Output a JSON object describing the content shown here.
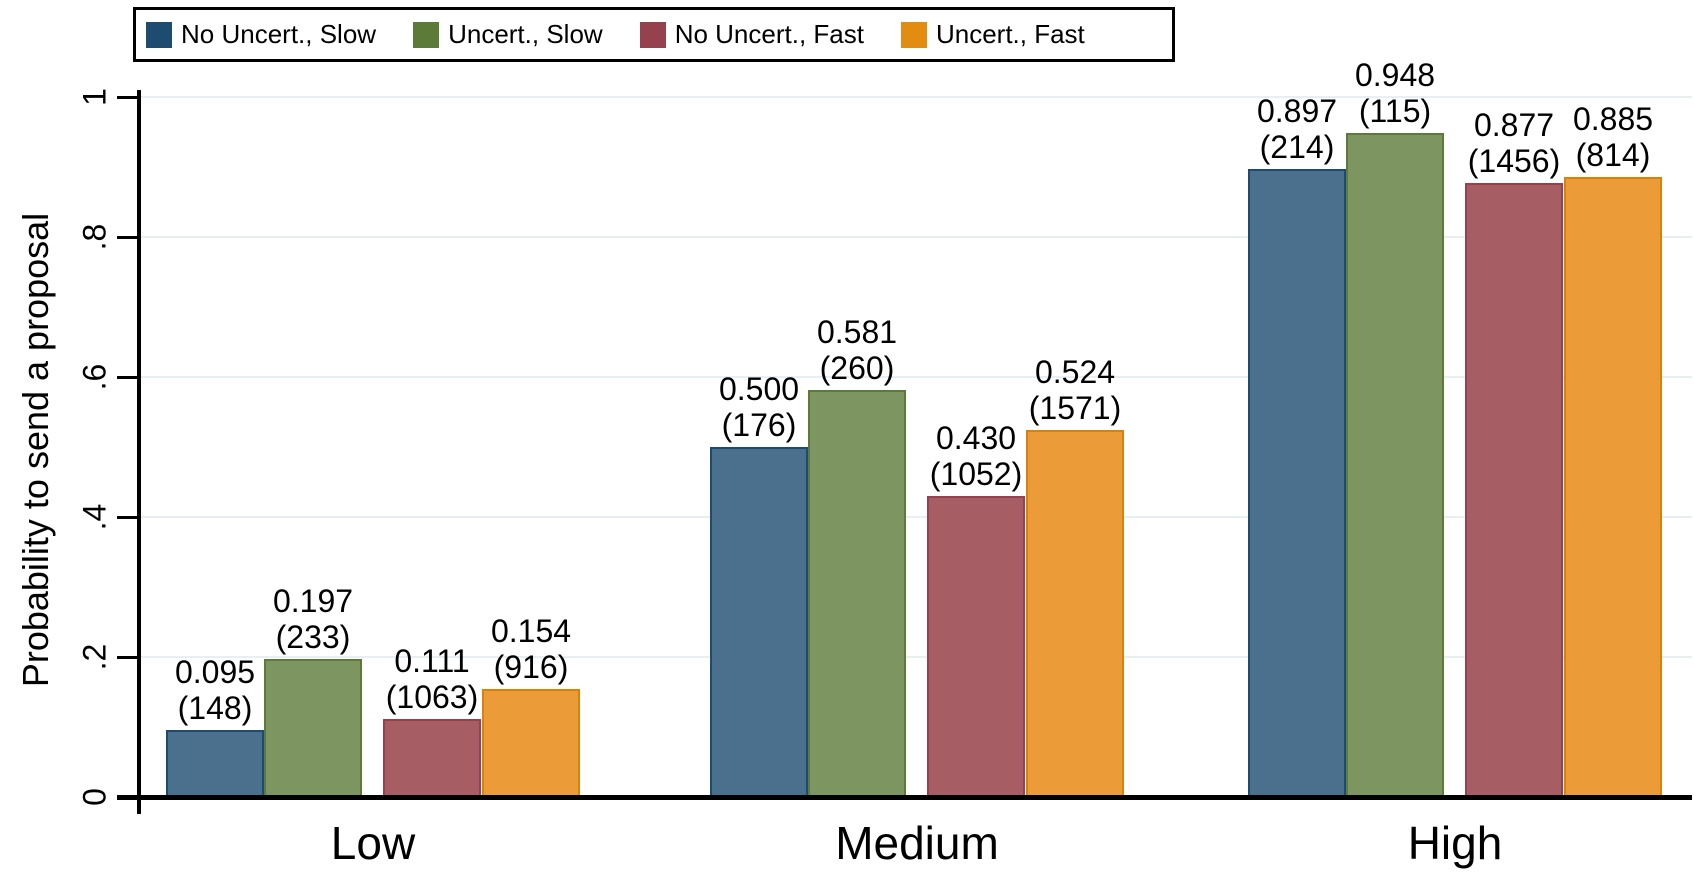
{
  "chart_data": {
    "type": "bar",
    "title": "",
    "ylabel": "Probability to send a proposal",
    "xlabel": "",
    "ylim": [
      0,
      1
    ],
    "grid": true,
    "legend_position": "top-left",
    "gridline_color": "#e8eff1",
    "categories": [
      "Low",
      "Medium",
      "High"
    ],
    "yticks": [
      {
        "value": 0,
        "label": "0"
      },
      {
        "value": 0.2,
        "label": ".2"
      },
      {
        "value": 0.4,
        "label": ".4"
      },
      {
        "value": 0.6,
        "label": ".6"
      },
      {
        "value": 0.8,
        "label": ".8"
      },
      {
        "value": 1,
        "label": "1"
      }
    ],
    "series": [
      {
        "name": "No Uncert., Slow",
        "fill": "#4b708d",
        "border": "#1e4c70",
        "legend_color": "#1e4c70",
        "values": [
          0.095,
          0.5,
          0.897
        ],
        "counts": [
          148,
          176,
          214
        ],
        "value_labels": [
          "0.095",
          "0.500",
          "0.897"
        ],
        "count_labels": [
          "(148)",
          "(176)",
          "(214)"
        ]
      },
      {
        "name": "Uncert., Slow",
        "fill": "#7d9560",
        "border": "#5d7b38",
        "legend_color": "#5d7b38",
        "values": [
          0.197,
          0.581,
          0.948
        ],
        "counts": [
          233,
          260,
          115
        ],
        "value_labels": [
          "0.197",
          "0.581",
          "0.948"
        ],
        "count_labels": [
          "(233)",
          "(260)",
          "(115)"
        ]
      },
      {
        "name": "No Uncert., Fast",
        "fill": "#a65d64",
        "border": "#96414e",
        "legend_color": "#96414e",
        "values": [
          0.111,
          0.43,
          0.877
        ],
        "counts": [
          1063,
          1052,
          1456
        ],
        "value_labels": [
          "0.111",
          "0.430",
          "0.877"
        ],
        "count_labels": [
          "(1063)",
          "(1052)",
          "(1456)"
        ]
      },
      {
        "name": "Uncert., Fast",
        "fill": "#eb9b37",
        "border": "#d9820b",
        "legend_color": "#e38c12",
        "values": [
          0.154,
          0.524,
          0.885
        ],
        "counts": [
          916,
          1571,
          814
        ],
        "value_labels": [
          "0.154",
          "0.524",
          "0.885"
        ],
        "count_labels": [
          "(916)",
          "(1571)",
          "(814)"
        ]
      }
    ]
  }
}
